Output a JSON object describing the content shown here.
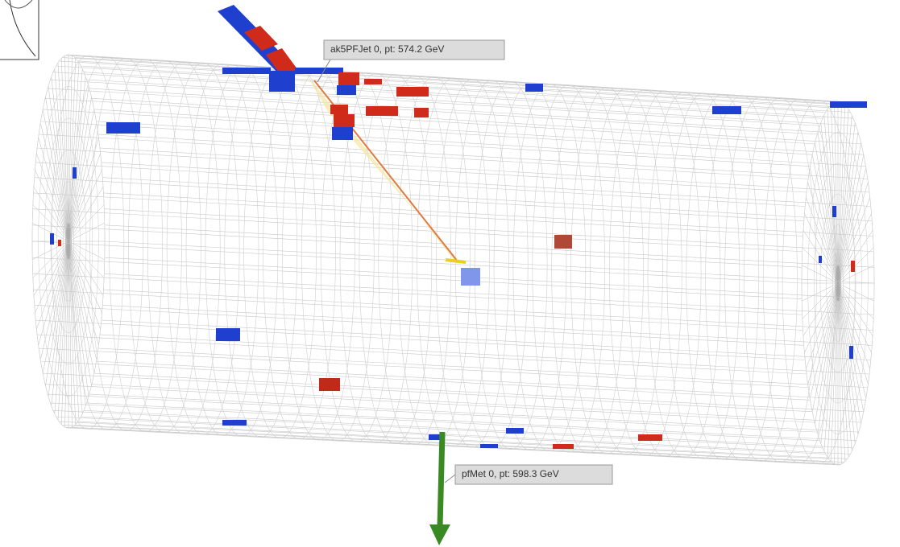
{
  "labels": [
    {
      "text": "ak5PFJet 0, pt: 574.2 GeV"
    },
    {
      "text": "pfMet 0, pt: 598.3 GeV"
    }
  ]
}
